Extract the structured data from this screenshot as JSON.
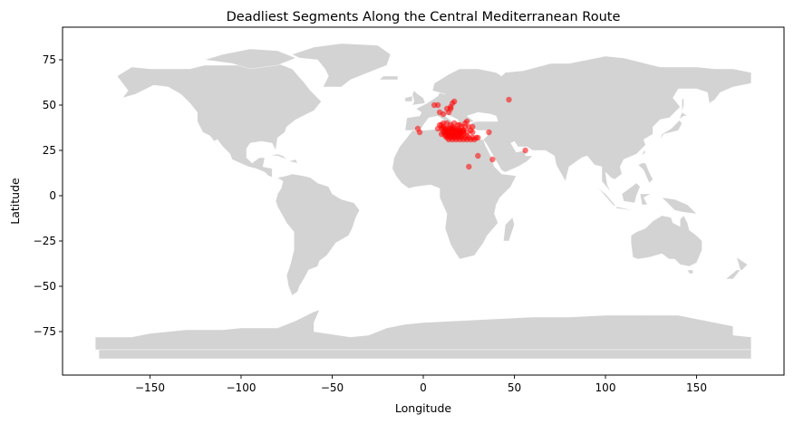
{
  "chart_data": {
    "type": "scatter",
    "title": "Deadliest Segments Along the Central Mediterranean Route",
    "xlabel": "Longitude",
    "ylabel": "Latitude",
    "xlim": [
      -198,
      198
    ],
    "ylim": [
      -99,
      93
    ],
    "xticks": [
      -150,
      -100,
      -50,
      0,
      50,
      100,
      150
    ],
    "yticks": [
      75,
      50,
      25,
      0,
      -25,
      -50,
      -75
    ],
    "grid": false,
    "legend": "none",
    "basemap": "world land polygons",
    "colors": {
      "land": "#d3d3d3",
      "points": "#ff0000",
      "axes": "#000000"
    },
    "point_alpha": 0.55,
    "series": [
      {
        "x": [
          -3,
          -2,
          47,
          56,
          36,
          38,
          25,
          30,
          8,
          10,
          11,
          12,
          13,
          14,
          15,
          16,
          17,
          18,
          19,
          20,
          11,
          12,
          13,
          14,
          15,
          16,
          17,
          18,
          19,
          20,
          21,
          22,
          10,
          12,
          14,
          16,
          18,
          20,
          22,
          24,
          12,
          13,
          14,
          15,
          16,
          17,
          18,
          19,
          20,
          21,
          13,
          15,
          17,
          19,
          21,
          23,
          25,
          27,
          29,
          30,
          14,
          16,
          18,
          20,
          22,
          24,
          26,
          28,
          12,
          14,
          16,
          18,
          20,
          22,
          10,
          11,
          9,
          11,
          13,
          15,
          16,
          17,
          19,
          20,
          21,
          23,
          25,
          27,
          26,
          27,
          22,
          24,
          14,
          15,
          16,
          17,
          13,
          15,
          8,
          6,
          9,
          11,
          24,
          23
        ],
        "y": [
          37,
          35,
          53,
          25,
          35,
          20,
          16,
          22,
          37,
          37,
          37,
          37,
          37,
          37,
          37,
          37,
          37,
          37,
          36,
          36,
          35,
          35,
          35,
          35,
          35,
          35,
          35,
          35,
          35,
          35,
          35,
          35,
          34,
          34,
          34,
          34,
          34,
          34,
          34,
          33,
          33,
          33,
          33,
          33,
          33,
          33,
          33,
          33,
          33,
          33,
          32,
          32,
          32,
          32,
          32,
          32,
          32,
          32,
          32,
          32,
          31,
          31,
          31,
          31,
          31,
          31,
          31,
          31,
          36,
          36,
          36,
          36,
          36,
          36,
          39,
          38,
          39,
          40,
          40,
          39,
          38,
          40,
          39,
          39,
          38,
          38,
          38,
          38,
          36,
          35,
          36,
          35,
          46,
          48,
          51,
          52,
          48,
          49,
          50,
          50,
          46,
          45,
          41,
          40
        ]
      }
    ]
  }
}
